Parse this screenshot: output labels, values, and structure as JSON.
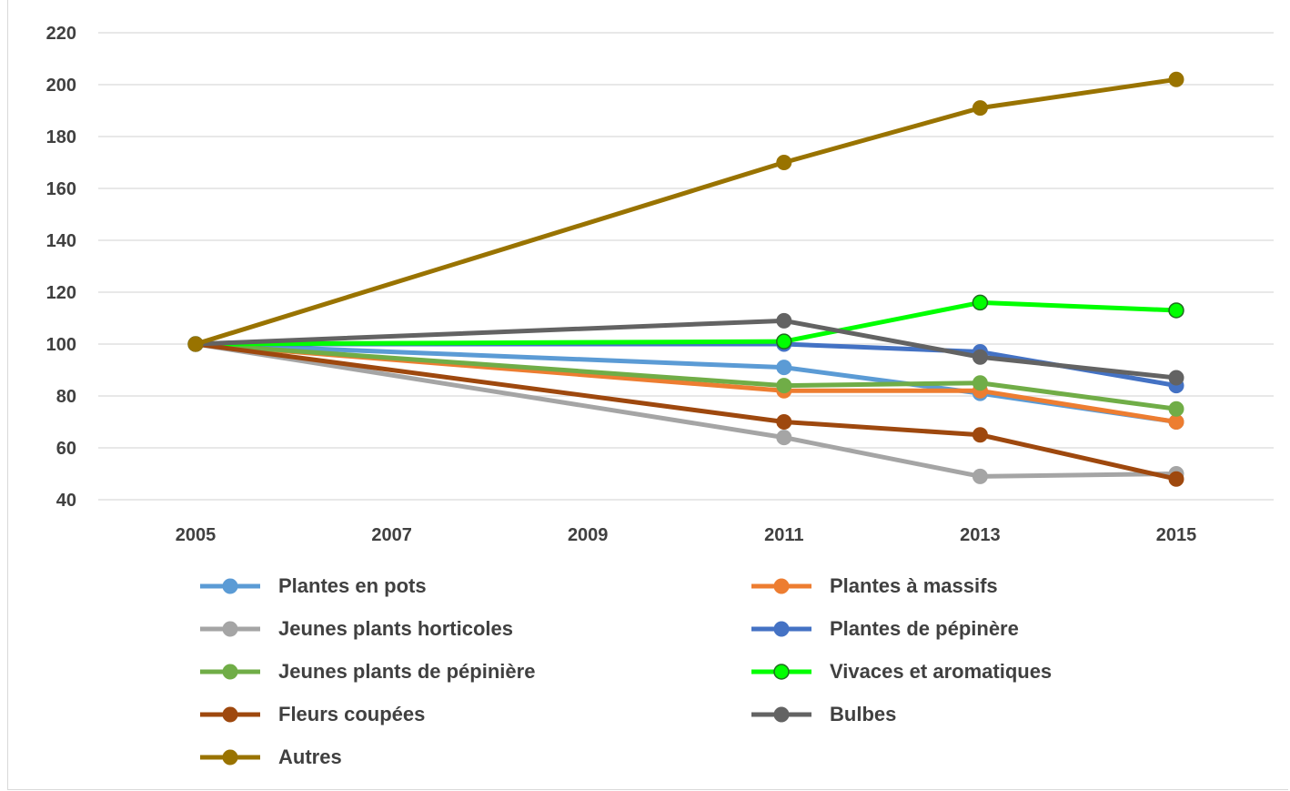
{
  "chart_data": {
    "type": "line",
    "title": "",
    "xlabel": "",
    "ylabel": "",
    "x": [
      2005,
      2011,
      2013,
      2015
    ],
    "x_ticks": [
      "2005",
      "2007",
      "2009",
      "2011",
      "2013",
      "2015"
    ],
    "xlim": [
      2005,
      2015
    ],
    "ylim": [
      40,
      220
    ],
    "y_ticks": [
      "40",
      "60",
      "80",
      "100",
      "120",
      "140",
      "160",
      "180",
      "200",
      "220"
    ],
    "grid": true,
    "legend_position": "bottom",
    "series": [
      {
        "name": "Plantes en pots",
        "color": "#5b9bd5",
        "values": [
          100,
          91,
          81,
          70
        ]
      },
      {
        "name": "Plantes à massifs",
        "color": "#ed7d31",
        "values": [
          100,
          82,
          82,
          70
        ]
      },
      {
        "name": "Jeunes plants horticoles",
        "color": "#a5a5a5",
        "values": [
          100,
          64,
          49,
          50
        ]
      },
      {
        "name": "Plantes de pépinère",
        "color": "#4472c4",
        "values": [
          100,
          100,
          97,
          84
        ]
      },
      {
        "name": "Jeunes plants de pépinière",
        "color": "#70ad47",
        "values": [
          100,
          84,
          85,
          75
        ]
      },
      {
        "name": "Vivaces et aromatiques",
        "color": "#00ff00",
        "values": [
          100,
          101,
          116,
          113
        ]
      },
      {
        "name": "Fleurs coupées",
        "color": "#9e480e",
        "values": [
          100,
          70,
          65,
          48
        ]
      },
      {
        "name": "Bulbes",
        "color": "#636363",
        "values": [
          100,
          109,
          95,
          87
        ]
      },
      {
        "name": "Autres",
        "color": "#997300",
        "values": [
          100,
          170,
          191,
          202
        ]
      }
    ]
  }
}
